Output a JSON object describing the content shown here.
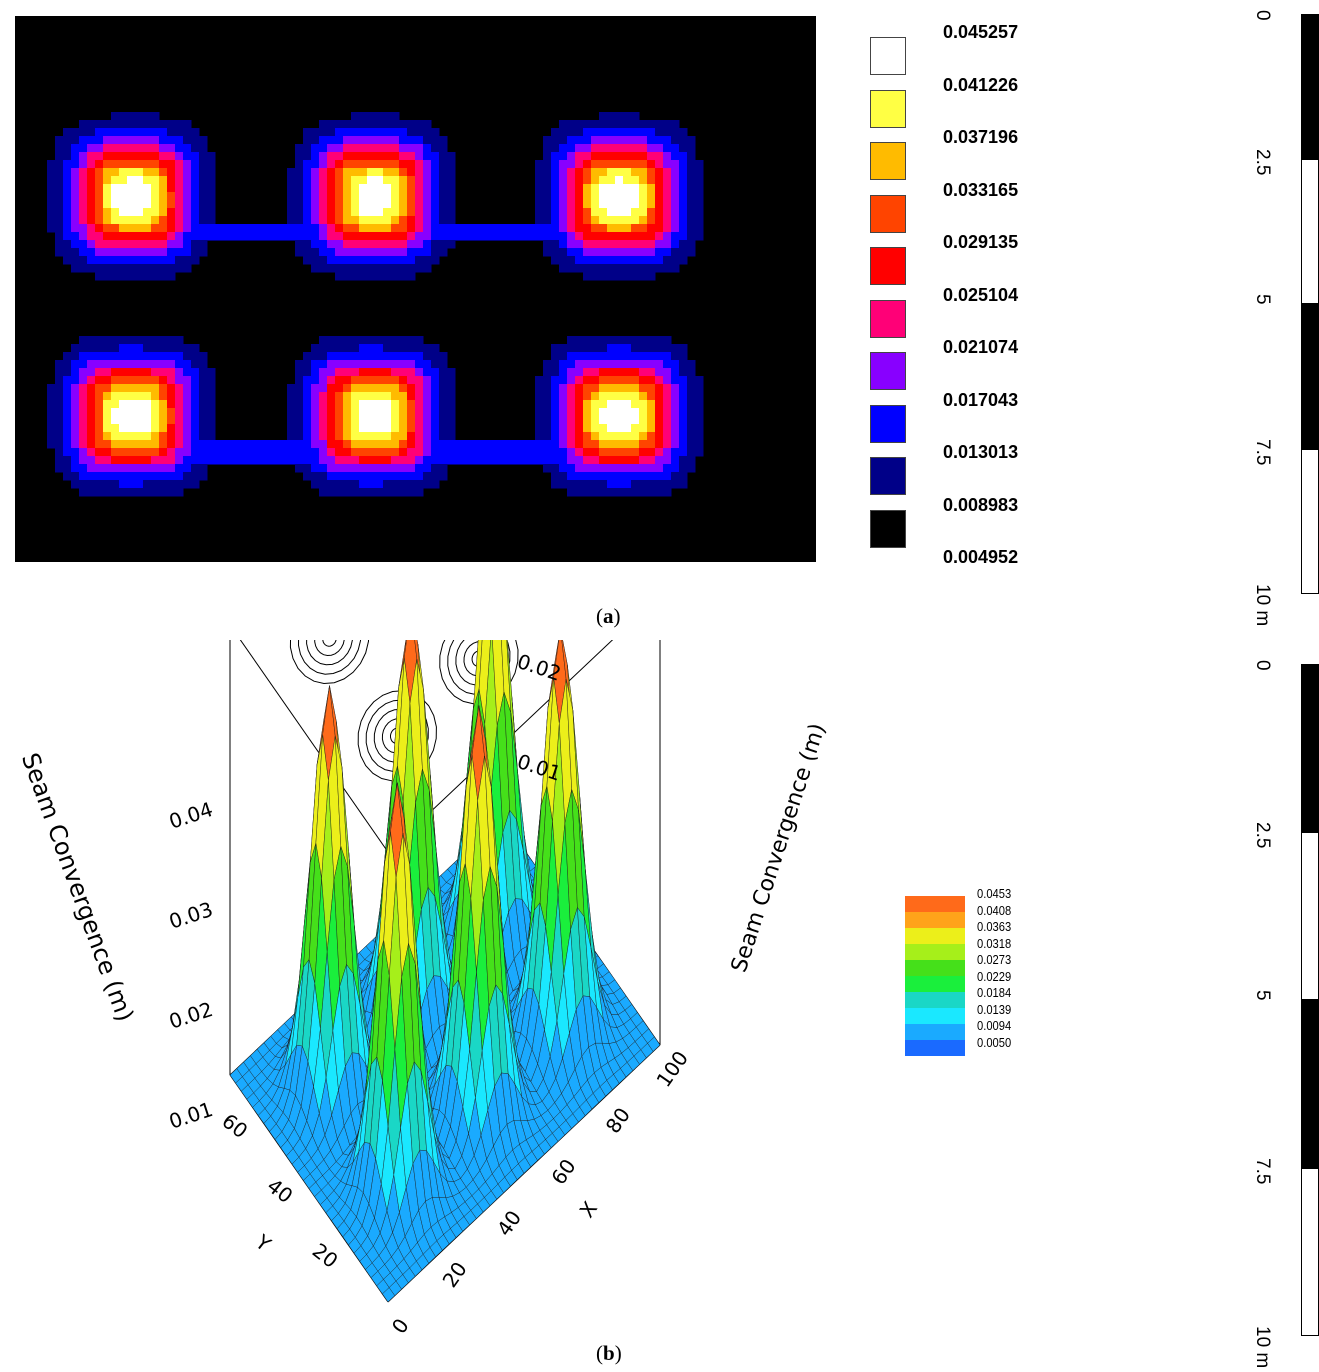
{
  "chart_data": [
    {
      "type": "heatmap",
      "panel": "(a)",
      "legend_levels": [
        "0.045257",
        "0.041226",
        "0.037196",
        "0.033165",
        "0.029135",
        "0.025104",
        "0.021074",
        "0.017043",
        "0.013013",
        "0.008983",
        "0.004952"
      ],
      "legend_colors": [
        "#ffffff",
        "#ffff44",
        "#ffbb00",
        "#ff4400",
        "#ff0000",
        "#ff0077",
        "#8800ff",
        "#0000ff",
        "#000088",
        "#000000"
      ],
      "pillars": [
        {
          "row": 1,
          "col": 1,
          "peak": 0.045257
        },
        {
          "row": 1,
          "col": 2,
          "peak": 0.045257
        },
        {
          "row": 1,
          "col": 3,
          "peak": 0.045257
        },
        {
          "row": 2,
          "col": 1,
          "peak": 0.045257
        },
        {
          "row": 2,
          "col": 2,
          "peak": 0.045257
        },
        {
          "row": 2,
          "col": 3,
          "peak": 0.045257
        }
      ],
      "scale_bar": {
        "ticks": [
          "0",
          "2.5",
          "5",
          "7.5",
          "10 m"
        ]
      }
    },
    {
      "type": "surface",
      "panel": "(b)",
      "zlabel_left": "Seam Convergence (m)",
      "zlabel_right": "Seam Convergence (m)",
      "xlabel": "X",
      "ylabel": "Y",
      "z_ticks": [
        "0.01",
        "0.02",
        "0.03",
        "0.04"
      ],
      "x_ticks": [
        "0",
        "20",
        "40",
        "60",
        "80",
        "100"
      ],
      "y_ticks": [
        "20",
        "40",
        "60"
      ],
      "legend_levels": [
        "0.0453",
        "0.0408",
        "0.0363",
        "0.0318",
        "0.0273",
        "0.0229",
        "0.0184",
        "0.0139",
        "0.0094",
        "0.0050"
      ],
      "legend_colors": [
        "#ff6a1a",
        "#ffa31a",
        "#ecef1a",
        "#a6ef1a",
        "#45e01a",
        "#1aef3c",
        "#1ad7c6",
        "#1ae8ff",
        "#1aaaff",
        "#1a6aff"
      ],
      "peaks": [
        {
          "x": 20,
          "y": 50,
          "z": 0.0453
        },
        {
          "x": 50,
          "y": 50,
          "z": 0.0453
        },
        {
          "x": 80,
          "y": 50,
          "z": 0.0453
        },
        {
          "x": 20,
          "y": 20,
          "z": 0.0453
        },
        {
          "x": 50,
          "y": 20,
          "z": 0.0453
        },
        {
          "x": 80,
          "y": 20,
          "z": 0.0453
        }
      ],
      "scale_bar": {
        "ticks": [
          "0",
          "2.5",
          "5",
          "7.5",
          "10 m"
        ]
      }
    }
  ],
  "captions": {
    "a": "(a)",
    "b": "(b)"
  },
  "captions_letters": {
    "a": "a",
    "b": "b"
  }
}
